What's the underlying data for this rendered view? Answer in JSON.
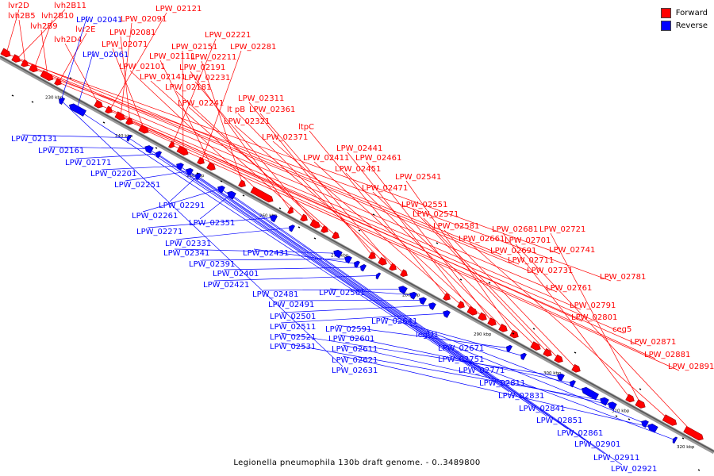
{
  "legend": {
    "forward_label": "Forward",
    "reverse_label": "Reverse",
    "forward_color": "#ff0000",
    "reverse_color": "#0000ff"
  },
  "caption": "Legionella pneumophila 130b draft genome. - 0..3489800",
  "ticks": [
    "230 kbp",
    "240 kbp",
    "250 kbp",
    "260 kbp",
    "270 kbp",
    "280 kbp",
    "290 kbp",
    "300 kbp",
    "310 kbp",
    "320 kbp"
  ],
  "forward_labels": [
    "lvr2D",
    "lvh2B11",
    "lvh2B5",
    "lvh2B10",
    "lvh2B9",
    "lvr2E",
    "lvh2D4",
    "LPW_02121",
    "LPW_02091",
    "LPW_02081",
    "LPW_02071",
    "LPW_02221",
    "LPW_02151",
    "LPW_02281",
    "LPW_02111",
    "LPW_02211",
    "LPW_02101",
    "LPW_02191",
    "LPW_02141",
    "LPW_02231",
    "LPW_02181",
    "LPW_02241",
    "LPW_02311",
    "lt pB",
    "LPW_02361",
    "LPW_02321",
    "ltpC",
    "LPW_02371",
    "LPW_02441",
    "LPW_02411",
    "LPW_02461",
    "LPW_02451",
    "LPW_02541",
    "LPW_02471",
    "LPW_02551",
    "LPW_02571",
    "LPW_02581",
    "LPW_02681",
    "LPW_02721",
    "LPW_02661",
    "LPW_02701",
    "LPW_02691",
    "LPW_02741",
    "LPW_02711",
    "LPW_02731",
    "LPW_02781",
    "LPW_02761",
    "LPW_02791",
    "LPW_02801",
    "ceg5",
    "LPW_02871",
    "LPW_02881",
    "LPW_02891"
  ],
  "reverse_labels": [
    "LPW_02041",
    "LPW_02061",
    "LPW_02131",
    "LPW_02161",
    "LPW_02171",
    "LPW_02201",
    "LPW_02251",
    "LPW_02291",
    "LPW_02261",
    "LPW_02351",
    "LPW_02271",
    "LPW_02331",
    "LPW_02341",
    "LPW_02391",
    "LPW_02431",
    "LPW_02401",
    "LPW_02421",
    "LPW_02481",
    "LPW_02561",
    "LPW_02491",
    "LPW_02501",
    "LPW_02511",
    "LPW_02591",
    "LPW_02641",
    "LPW_02521",
    "LPW_02601",
    "legU1",
    "LPW_02531",
    "LPW_02611",
    "LPW_02671",
    "LPW_02621",
    "LPW_02751",
    "LPW_02631",
    "LPW_02771",
    "LPW_02811",
    "LPW_02831",
    "LPW_02841",
    "LPW_02851",
    "LPW_02861",
    "LPW_02901",
    "LPW_02911",
    "LPW_02921"
  ]
}
